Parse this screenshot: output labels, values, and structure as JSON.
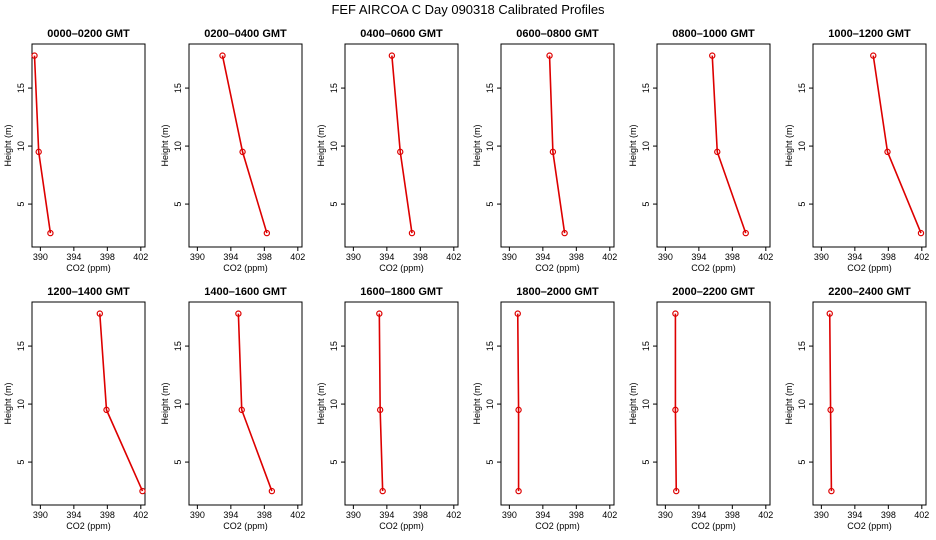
{
  "chart_data": {
    "type": "line",
    "title": "FEF AIRCOA C  Day 090318  Calibrated Profiles",
    "xlabel": "CO2 (ppm)",
    "ylabel": "Height (m)",
    "xlim": [
      389,
      402.5
    ],
    "ylim": [
      1.3,
      18.8
    ],
    "xticks": [
      390,
      394,
      398,
      402
    ],
    "yticks": [
      5,
      10,
      15
    ],
    "heights": [
      17.8,
      9.5,
      2.5
    ],
    "series_color": "#dd0000",
    "panels": [
      {
        "title": "0000–0200 GMT",
        "values": [
          389.3,
          389.8,
          391.2
        ]
      },
      {
        "title": "0200–0400 GMT",
        "values": [
          393.0,
          395.4,
          398.3
        ]
      },
      {
        "title": "0400–0600 GMT",
        "values": [
          394.6,
          395.6,
          397.0
        ]
      },
      {
        "title": "0600–0800 GMT",
        "values": [
          394.8,
          395.2,
          396.6
        ]
      },
      {
        "title": "0800–1000 GMT",
        "values": [
          395.6,
          396.2,
          399.6
        ]
      },
      {
        "title": "1000–1200 GMT",
        "values": [
          396.2,
          397.9,
          401.9
        ]
      },
      {
        "title": "1200–1400 GMT",
        "values": [
          397.1,
          397.9,
          402.2
        ]
      },
      {
        "title": "1400–1600 GMT",
        "values": [
          394.9,
          395.3,
          398.9
        ]
      },
      {
        "title": "1600–1800 GMT",
        "values": [
          393.1,
          393.2,
          393.5
        ]
      },
      {
        "title": "1800–2000 GMT",
        "values": [
          391.0,
          391.1,
          391.1
        ]
      },
      {
        "title": "2000–2200 GMT",
        "values": [
          391.2,
          391.2,
          391.3
        ]
      },
      {
        "title": "2200–2400 GMT",
        "values": [
          391.0,
          391.1,
          391.2
        ]
      }
    ]
  }
}
